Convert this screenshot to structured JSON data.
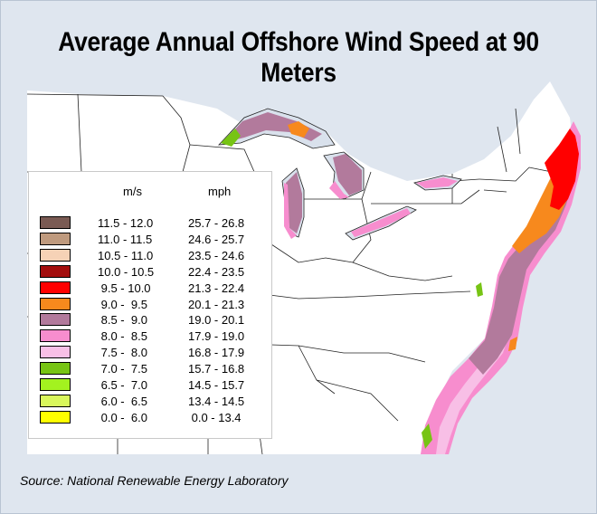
{
  "title": "Average Annual Offshore Wind Speed at 90 Meters",
  "source": "Source: National Renewable Energy Laboratory",
  "legend": {
    "ms_header": "m/s",
    "mph_header": "mph",
    "rows": [
      {
        "ms": "11.5 - 12.0",
        "mph": "25.7 - 26.8",
        "color": "#7a5a53"
      },
      {
        "ms": "11.0 - 11.5",
        "mph": "24.6 - 25.7",
        "color": "#bf9a7e"
      },
      {
        "ms": "10.5 - 11.0",
        "mph": "23.5 - 24.6",
        "color": "#f6d2b6"
      },
      {
        "ms": "10.0 - 10.5",
        "mph": "22.4 - 23.5",
        "color": "#a30d0d"
      },
      {
        "ms": " 9.5 - 10.0",
        "mph": "21.3 - 22.4",
        "color": "#ff0000"
      },
      {
        "ms": " 9.0 -  9.5",
        "mph": "20.1 - 21.3",
        "color": "#f7891d"
      },
      {
        "ms": " 8.5 -  9.0",
        "mph": "19.0 - 20.1",
        "color": "#b27a9c"
      },
      {
        "ms": " 8.0 -  8.5",
        "mph": "17.9 - 19.0",
        "color": "#f78dce"
      },
      {
        "ms": " 7.5 -  8.0",
        "mph": "16.8 - 17.9",
        "color": "#f8bfe6"
      },
      {
        "ms": " 7.0 -  7.5",
        "mph": "15.7 - 16.8",
        "color": "#77c414"
      },
      {
        "ms": " 6.5 -  7.0",
        "mph": "14.5 - 15.7",
        "color": "#a3f21f"
      },
      {
        "ms": " 6.0 -  6.5",
        "mph": "13.4 - 14.5",
        "color": "#d9f75c"
      },
      {
        "ms": " 0.0 -  6.0",
        "mph": " 0.0 - 13.4",
        "color": "#ffff00"
      }
    ]
  }
}
